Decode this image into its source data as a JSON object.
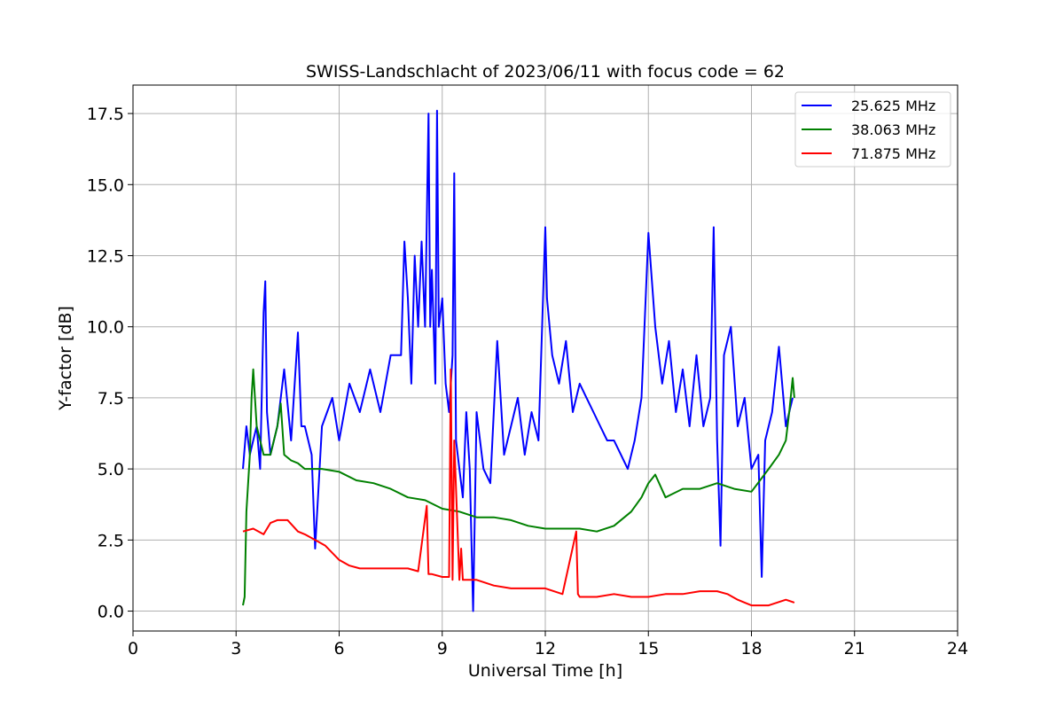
{
  "chart_data": {
    "type": "line",
    "title": "SWISS-Landschlacht of 2023/06/11 with focus code = 62",
    "xlabel": "Universal Time [h]",
    "ylabel": "Y-factor [dB]",
    "xlim": [
      0,
      24
    ],
    "ylim": [
      -0.7,
      18.5
    ],
    "xticks": [
      0,
      3,
      6,
      9,
      12,
      15,
      18,
      21,
      24
    ],
    "xtick_labels": [
      "0",
      "3",
      "6",
      "9",
      "12",
      "15",
      "18",
      "21",
      "24"
    ],
    "yticks": [
      0.0,
      2.5,
      5.0,
      7.5,
      10.0,
      12.5,
      15.0,
      17.5
    ],
    "ytick_labels": [
      "0.0",
      "2.5",
      "5.0",
      "7.5",
      "10.0",
      "12.5",
      "15.0",
      "17.5"
    ],
    "grid": true,
    "legend_position": "top-right",
    "series": [
      {
        "name": "25.625 MHz",
        "color": "#0000ff",
        "x": [
          3.2,
          3.3,
          3.4,
          3.5,
          3.6,
          3.7,
          3.8,
          3.85,
          3.9,
          4.0,
          4.2,
          4.4,
          4.6,
          4.8,
          4.9,
          5.0,
          5.2,
          5.3,
          5.5,
          5.8,
          6.0,
          6.3,
          6.6,
          6.9,
          7.2,
          7.5,
          7.8,
          7.9,
          8.0,
          8.1,
          8.2,
          8.3,
          8.4,
          8.5,
          8.6,
          8.65,
          8.7,
          8.8,
          8.85,
          8.9,
          9.0,
          9.1,
          9.2,
          9.3,
          9.35,
          9.4,
          9.5,
          9.6,
          9.7,
          9.8,
          9.9,
          10.0,
          10.2,
          10.4,
          10.6,
          10.8,
          11.0,
          11.2,
          11.4,
          11.6,
          11.8,
          12.0,
          12.05,
          12.2,
          12.4,
          12.6,
          12.8,
          13.0,
          13.2,
          13.4,
          13.6,
          13.8,
          14.0,
          14.2,
          14.4,
          14.6,
          14.8,
          15.0,
          15.2,
          15.4,
          15.6,
          15.8,
          16.0,
          16.2,
          16.4,
          16.6,
          16.8,
          16.9,
          17.0,
          17.1,
          17.2,
          17.4,
          17.6,
          17.8,
          18.0,
          18.2,
          18.3,
          18.4,
          18.6,
          18.8,
          19.0,
          19.2
        ],
        "y": [
          5.0,
          6.5,
          5.5,
          6.0,
          6.5,
          5.0,
          10.5,
          11.6,
          7.0,
          5.5,
          6.5,
          8.5,
          6.0,
          9.8,
          6.5,
          6.5,
          5.5,
          2.2,
          6.5,
          7.5,
          6.0,
          8.0,
          7.0,
          8.5,
          7.0,
          9.0,
          9.0,
          13.0,
          11.0,
          8.0,
          12.5,
          10.0,
          13.0,
          10.0,
          17.5,
          10.0,
          12.0,
          8.0,
          17.6,
          10.0,
          11.0,
          8.0,
          7.0,
          9.0,
          15.4,
          6.0,
          5.0,
          4.0,
          7.0,
          5.0,
          0.0,
          7.0,
          5.0,
          4.5,
          9.5,
          5.5,
          6.5,
          7.5,
          5.5,
          7.0,
          6.0,
          13.5,
          11.0,
          9.0,
          8.0,
          9.5,
          7.0,
          8.0,
          7.5,
          7.0,
          6.5,
          6.0,
          6.0,
          5.5,
          5.0,
          6.0,
          7.5,
          13.3,
          10.0,
          8.0,
          9.5,
          7.0,
          8.5,
          6.5,
          9.0,
          6.5,
          7.5,
          13.5,
          6.0,
          2.3,
          9.0,
          10.0,
          6.5,
          7.5,
          5.0,
          5.5,
          1.2,
          6.0,
          7.0,
          9.3,
          6.5,
          7.5
        ]
      },
      {
        "name": "38.063 MHz",
        "color": "#008000",
        "x": [
          3.2,
          3.25,
          3.3,
          3.4,
          3.45,
          3.5,
          3.6,
          3.8,
          4.0,
          4.2,
          4.3,
          4.4,
          4.6,
          4.8,
          5.0,
          5.5,
          6.0,
          6.5,
          7.0,
          7.5,
          8.0,
          8.5,
          9.0,
          9.5,
          10.0,
          10.5,
          11.0,
          11.5,
          12.0,
          12.5,
          13.0,
          13.5,
          14.0,
          14.5,
          14.8,
          15.0,
          15.2,
          15.5,
          16.0,
          16.5,
          17.0,
          17.5,
          18.0,
          18.5,
          18.8,
          19.0,
          19.1,
          19.2,
          19.25
        ],
        "y": [
          0.2,
          0.5,
          3.5,
          5.5,
          7.5,
          8.5,
          6.5,
          5.5,
          5.5,
          6.5,
          7.3,
          5.5,
          5.3,
          5.2,
          5.0,
          5.0,
          4.9,
          4.6,
          4.5,
          4.3,
          4.0,
          3.9,
          3.6,
          3.5,
          3.3,
          3.3,
          3.2,
          3.0,
          2.9,
          2.9,
          2.9,
          2.8,
          3.0,
          3.5,
          4.0,
          4.5,
          4.8,
          4.0,
          4.3,
          4.3,
          4.5,
          4.3,
          4.2,
          5.0,
          5.5,
          6.0,
          7.0,
          8.2,
          7.5
        ]
      },
      {
        "name": "71.875 MHz",
        "color": "#ff0000",
        "x": [
          3.2,
          3.5,
          3.8,
          4.0,
          4.2,
          4.5,
          4.8,
          5.0,
          5.3,
          5.6,
          6.0,
          6.3,
          6.6,
          7.0,
          7.5,
          8.0,
          8.3,
          8.55,
          8.6,
          8.7,
          9.0,
          9.2,
          9.25,
          9.3,
          9.35,
          9.5,
          9.55,
          9.6,
          10.0,
          10.5,
          11.0,
          11.5,
          12.0,
          12.5,
          12.9,
          12.95,
          13.0,
          13.5,
          14.0,
          14.5,
          15.0,
          15.5,
          16.0,
          16.5,
          17.0,
          17.3,
          17.6,
          17.8,
          18.0,
          18.5,
          19.0,
          19.25
        ],
        "y": [
          2.8,
          2.9,
          2.7,
          3.1,
          3.2,
          3.2,
          2.8,
          2.7,
          2.5,
          2.3,
          1.8,
          1.6,
          1.5,
          1.5,
          1.5,
          1.5,
          1.4,
          3.7,
          1.3,
          1.3,
          1.2,
          1.2,
          8.5,
          1.1,
          6.0,
          1.1,
          2.2,
          1.1,
          1.1,
          0.9,
          0.8,
          0.8,
          0.8,
          0.6,
          2.8,
          0.6,
          0.5,
          0.5,
          0.6,
          0.5,
          0.5,
          0.6,
          0.6,
          0.7,
          0.7,
          0.6,
          0.4,
          0.3,
          0.2,
          0.2,
          0.4,
          0.3
        ]
      }
    ]
  }
}
